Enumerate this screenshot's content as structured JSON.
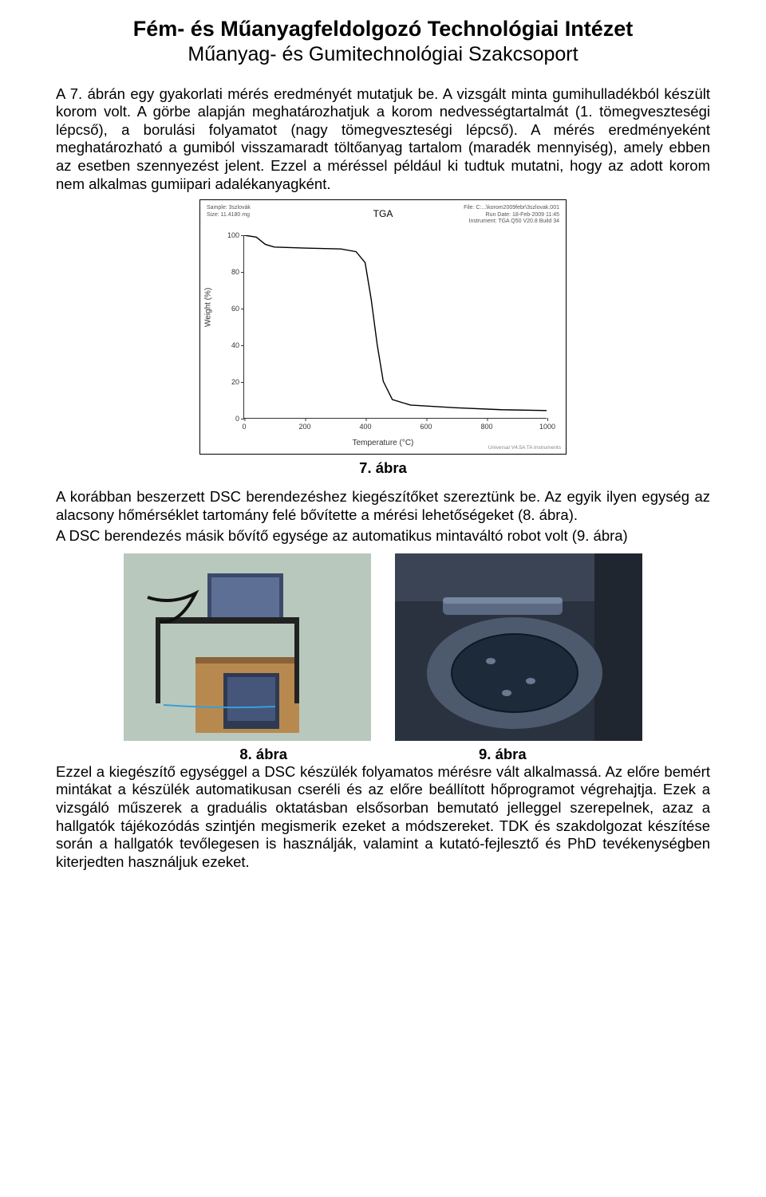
{
  "header": {
    "title": "Fém- és Műanyagfeldolgozó Technológiai Intézet",
    "subtitle": "Műanyag- és Gumitechnológiai Szakcsoport"
  },
  "paragraphs": {
    "p1": "A 7. ábrán egy gyakorlati mérés eredményét mutatjuk be. A vizsgált minta gumihulladékból készült korom volt. A görbe alapján meghatározhatjuk a korom nedvességtartalmát (1. tömegveszteségi lépcső), a borulási folyamatot (nagy tömegveszteségi lépcső). A mérés eredményeként meghatározható a gumiból visszamaradt töltőanyag tartalom (maradék mennyiség), amely ebben az esetben szennyezést jelent. Ezzel a méréssel például ki tudtuk mutatni, hogy az adott korom nem alkalmas gumiipari adalékanyagként.",
    "p2": "A korábban beszerzett DSC berendezéshez kiegészítőket szereztünk be. Az egyik ilyen egység az alacsony hőmérséklet tartomány felé bővítette a mérési lehetőségeket (8. ábra).",
    "p3": "A DSC berendezés másik bővítő egysége az automatikus mintaváltó robot volt (9. ábra)",
    "p4": "Ezzel a kiegészítő egységgel a DSC készülék folyamatos mérésre vált alkalmassá. Az előre bemért mintákat a készülék automatikusan cseréli és az előre beállított hőprogramot végrehajtja. Ezek a vizsgáló műszerek a graduális oktatásban elsősorban bemutató jelleggel szerepelnek, azaz a hallgatók tájékozódás szintjén megismerik ezeket a módszereket. TDK és szakdolgozat készítése során a hallgatók tevőlegesen is használják, valamint a kutató-fejlesztő és PhD tevékenységben kiterjedten használjuk ezeket."
  },
  "chart": {
    "type": "line",
    "title": "TGA",
    "sample_label": "Sample: 3szlovák",
    "size_label": "Size: 11.4180 mg",
    "file_label": "File: C:...\\korom2009febr\\3szlovak.001",
    "rundate_label": "Run Date: 18-Feb-2009 11:45",
    "instrument_label": "Instrument: TGA Q50 V20.8 Build 34",
    "xlabel": "Temperature (°C)",
    "ylabel": "Weight (%)",
    "footer_right": "Universal V4.5A TA Instruments",
    "xlim": [
      0,
      1000
    ],
    "ylim": [
      0,
      100
    ],
    "xtick_step": 200,
    "ytick_step": 20,
    "line_color": "#000000",
    "line_width": 1.4,
    "background_color": "#ffffff",
    "axis_color": "#333333",
    "points": [
      [
        0,
        100
      ],
      [
        40,
        99
      ],
      [
        70,
        95
      ],
      [
        100,
        93.5
      ],
      [
        200,
        93
      ],
      [
        320,
        92.5
      ],
      [
        370,
        91
      ],
      [
        400,
        85
      ],
      [
        420,
        65
      ],
      [
        440,
        40
      ],
      [
        460,
        20
      ],
      [
        490,
        10
      ],
      [
        550,
        7
      ],
      [
        700,
        5.5
      ],
      [
        850,
        4.5
      ],
      [
        1000,
        4
      ]
    ]
  },
  "captions": {
    "fig7": "7. ábra",
    "fig8": "8. ábra",
    "fig9": "9. ábra"
  },
  "photos": {
    "left_alt": "DSC low-temperature accessory on lab bench",
    "right_alt": "DSC automatic sample changer robot"
  }
}
